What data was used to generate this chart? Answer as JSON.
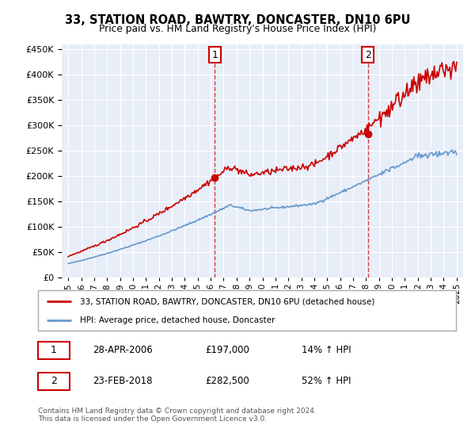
{
  "title": "33, STATION ROAD, BAWTRY, DONCASTER, DN10 6PU",
  "subtitle": "Price paid vs. HM Land Registry's House Price Index (HPI)",
  "legend_line1": "33, STATION ROAD, BAWTRY, DONCASTER, DN10 6PU (detached house)",
  "legend_line2": "HPI: Average price, detached house, Doncaster",
  "footnote": "Contains HM Land Registry data © Crown copyright and database right 2024.\nThis data is licensed under the Open Government Licence v3.0.",
  "sale1_date": "28-APR-2006",
  "sale1_price": "£197,000",
  "sale1_hpi": "14% ↑ HPI",
  "sale1_year": 2006.32,
  "sale1_value": 197000,
  "sale2_date": "23-FEB-2018",
  "sale2_price": "£282,500",
  "sale2_hpi": "52% ↑ HPI",
  "sale2_year": 2018.14,
  "sale2_value": 282500,
  "ylim": [
    0,
    460000
  ],
  "yticks": [
    0,
    50000,
    100000,
    150000,
    200000,
    250000,
    300000,
    350000,
    400000,
    450000
  ],
  "xlim_start": 1994.5,
  "xlim_end": 2025.5,
  "red_color": "#cc0000",
  "blue_color": "#6699cc",
  "plot_bg": "#e8eef8"
}
